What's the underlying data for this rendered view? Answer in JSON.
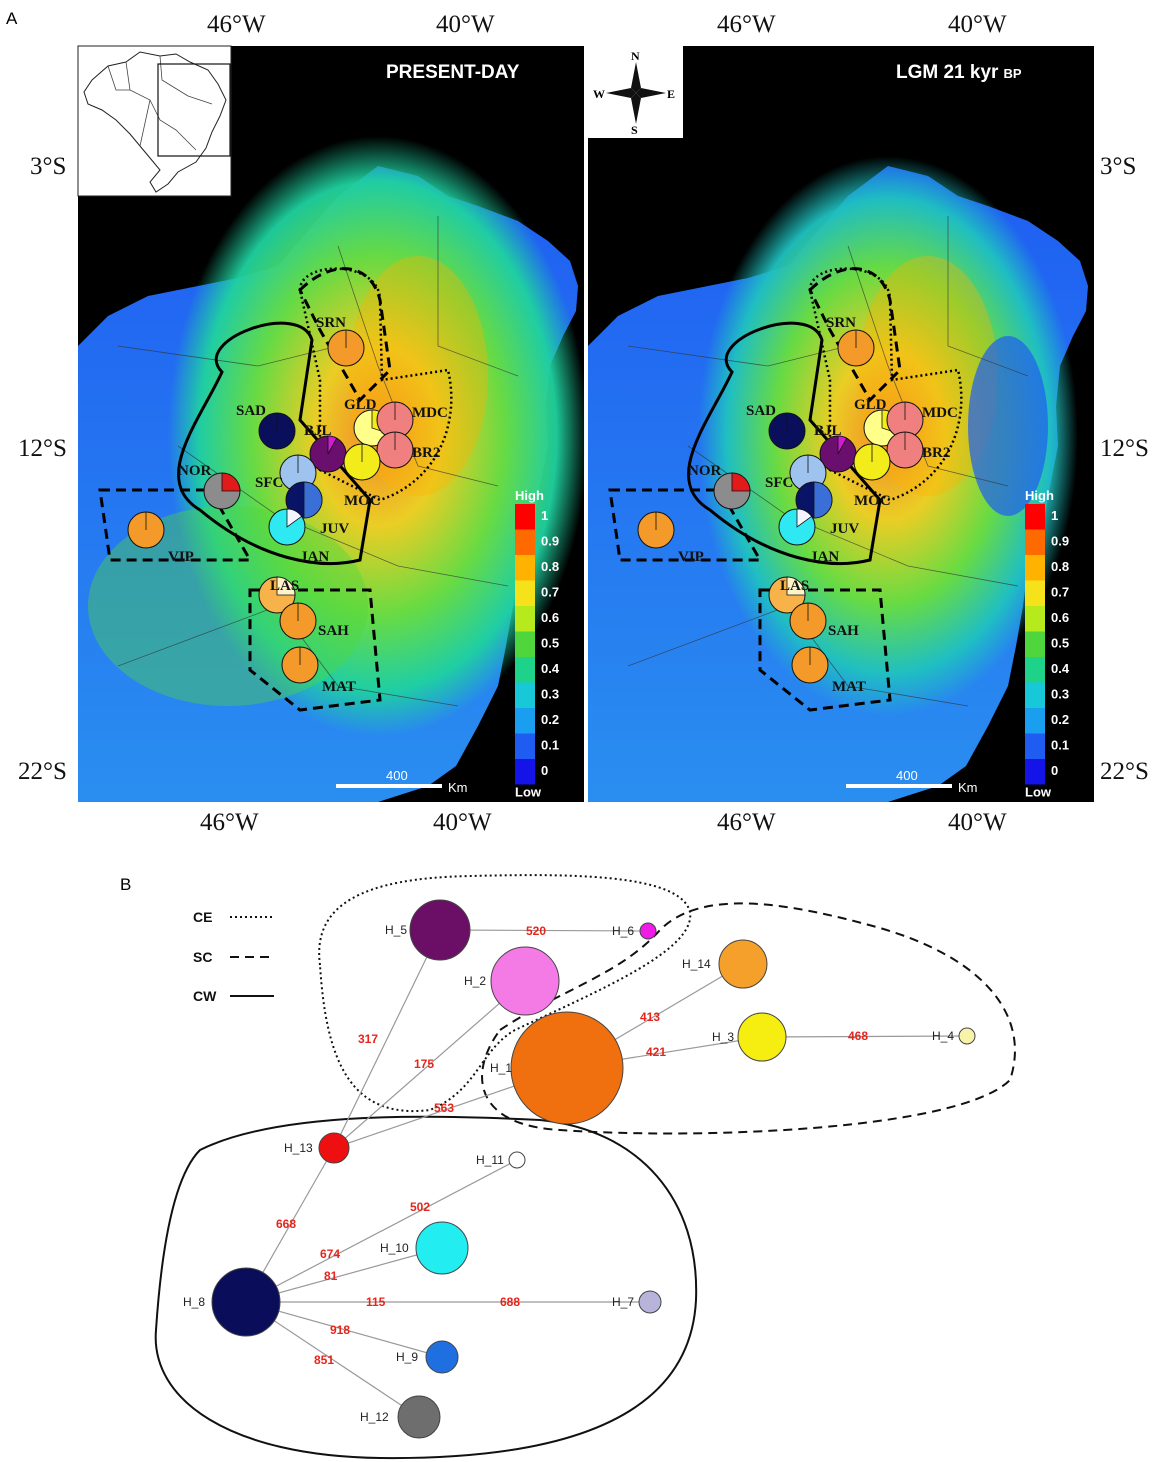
{
  "panels": {
    "a_label": "A",
    "b_label": "B"
  },
  "map_left": {
    "title": "PRESENT-DAY",
    "x_offset": 0
  },
  "map_right": {
    "title": "LGM 21 kyr",
    "title_suffix": "BP",
    "x_offset": 510
  },
  "coordinates": {
    "top": [
      "46°W",
      "40°W",
      "46°W",
      "40°W"
    ],
    "bottom": [
      "46°W",
      "40°W",
      "46°W",
      "40°W"
    ],
    "left": [
      "3°S",
      "12°S",
      "22°S"
    ],
    "right": [
      "3°S",
      "12°S",
      "22°S"
    ]
  },
  "compass": {
    "n": "N",
    "s": "S",
    "e": "E",
    "w": "W"
  },
  "scale_bar": {
    "value": "400",
    "unit": "Km"
  },
  "suitability_legend": {
    "high": "High",
    "low": "Low",
    "ticks": [
      "1",
      "0.9",
      "0.8",
      "0.7",
      "0.6",
      "0.5",
      "0.4",
      "0.3",
      "0.2",
      "0.1",
      "0"
    ],
    "colors": [
      "#ff0000",
      "#ff6a00",
      "#ffb300",
      "#f5e21a",
      "#b6ea1c",
      "#4fd63c",
      "#1fd28a",
      "#16c8d8",
      "#1a9ef0",
      "#1f5df2",
      "#1414e8"
    ]
  },
  "sites": [
    {
      "code": "SRN",
      "colors": [
        "#f39a2b"
      ]
    },
    {
      "code": "SAD",
      "colors": [
        "#0a0f5c"
      ]
    },
    {
      "code": "BJL",
      "colors": [
        "#6a0f6e",
        "#d21ad2"
      ]
    },
    {
      "code": "GLD",
      "colors": [
        "#ffff8a",
        "#f2ec1a"
      ]
    },
    {
      "code": "MDC",
      "colors": [
        "#f08080"
      ]
    },
    {
      "code": "BR2",
      "colors": [
        "#f08080"
      ]
    },
    {
      "code": "NOR",
      "colors": [
        "#8c8c8c",
        "#e21a1a"
      ]
    },
    {
      "code": "SFC",
      "colors": [
        "#9ec3ee"
      ]
    },
    {
      "code": "MOC",
      "colors": [
        "#f2ec1a"
      ]
    },
    {
      "code": "JUV",
      "colors": [
        "#0a1466",
        "#3a6fd8"
      ]
    },
    {
      "code": "JAN",
      "colors": [
        "#2ee8f2",
        "#f4f4ff"
      ]
    },
    {
      "code": "VIP",
      "colors": [
        "#f39a2b"
      ]
    },
    {
      "code": "LAS",
      "colors": [
        "#f8b24a",
        "#fff3c8"
      ]
    },
    {
      "code": "SAH",
      "colors": [
        "#f39a2b"
      ]
    },
    {
      "code": "MAT",
      "colors": [
        "#f39a2b"
      ]
    }
  ],
  "network": {
    "key": {
      "ce": "CE",
      "sc": "SC",
      "cw": "CW"
    },
    "haplotypes": [
      {
        "id": "H_1",
        "color": "#f07010"
      },
      {
        "id": "H_2",
        "color": "#f47ae6"
      },
      {
        "id": "H_3",
        "color": "#f5ee10"
      },
      {
        "id": "H_4",
        "color": "#f7f3a8"
      },
      {
        "id": "H_5",
        "color": "#6b0f66"
      },
      {
        "id": "H_6",
        "color": "#ef1ce8"
      },
      {
        "id": "H_7",
        "color": "#b7b4dc"
      },
      {
        "id": "H_8",
        "color": "#0a0e5a"
      },
      {
        "id": "H_9",
        "color": "#1f6fe0"
      },
      {
        "id": "H_10",
        "color": "#22eef2"
      },
      {
        "id": "H_11",
        "color": "#ffffff"
      },
      {
        "id": "H_12",
        "color": "#6e6e6e"
      },
      {
        "id": "H_13",
        "color": "#ee1010"
      },
      {
        "id": "H_14",
        "color": "#f5a02a"
      }
    ],
    "mutation_labels": [
      "520",
      "317",
      "175",
      "563",
      "413",
      "421",
      "468",
      "668",
      "502",
      "674",
      "81",
      "115",
      "688",
      "918",
      "851"
    ]
  }
}
